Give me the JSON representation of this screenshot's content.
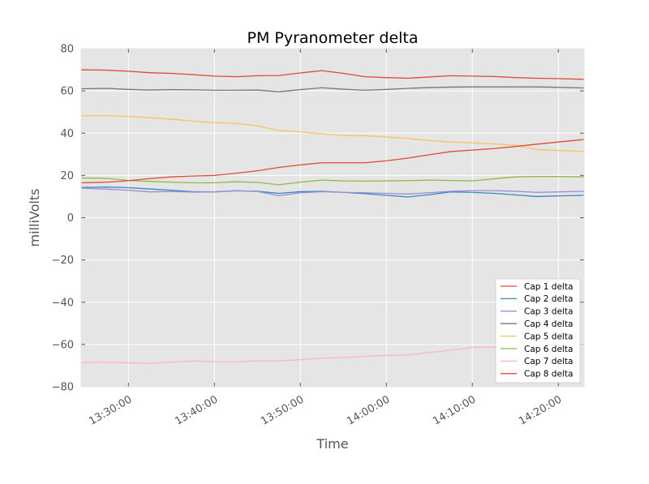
{
  "chart_data": {
    "type": "line",
    "title": "PM Pyranometer delta",
    "xlabel": "Time",
    "ylabel": "milliVolts",
    "ylim": [
      -80,
      80
    ],
    "yticks": [
      -80,
      -60,
      -40,
      -20,
      0,
      20,
      40,
      60,
      80
    ],
    "xlim": [
      "13:24:30",
      "14:23:00"
    ],
    "xticks": [
      "13:30:00",
      "13:40:00",
      "13:50:00",
      "14:00:00",
      "14:10:00",
      "14:20:00"
    ],
    "grid": true,
    "legend_position": "lower right",
    "background": "#e5e5e5",
    "x": [
      "13:24:30",
      "13:27:30",
      "13:30:00",
      "13:32:30",
      "13:35:00",
      "13:37:30",
      "13:40:00",
      "13:42:30",
      "13:45:00",
      "13:47:30",
      "13:50:00",
      "13:52:30",
      "13:55:00",
      "13:57:30",
      "14:00:00",
      "14:02:30",
      "14:05:00",
      "14:07:30",
      "14:10:00",
      "14:12:30",
      "14:15:00",
      "14:17:30",
      "14:20:00",
      "14:23:00"
    ],
    "series": [
      {
        "name": "Cap 1 delta",
        "color": "#e24a33",
        "values": [
          70.0,
          69.8,
          69.3,
          68.6,
          68.3,
          67.7,
          67.0,
          66.7,
          67.2,
          67.3,
          68.5,
          69.6,
          68.3,
          66.7,
          66.3,
          66.0,
          66.6,
          67.2,
          67.0,
          66.8,
          66.3,
          66.0,
          65.8,
          65.5
        ]
      },
      {
        "name": "Cap 2 delta",
        "color": "#348abd",
        "values": [
          14.3,
          14.5,
          14.2,
          13.6,
          13.0,
          12.3,
          12.2,
          12.7,
          12.5,
          11.5,
          12.3,
          12.5,
          12.0,
          11.4,
          10.6,
          9.8,
          10.9,
          12.2,
          12.0,
          11.5,
          10.8,
          10.0,
          10.3,
          10.6
        ]
      },
      {
        "name": "Cap 3 delta",
        "color": "#988ed5",
        "values": [
          14.0,
          13.5,
          13.0,
          12.2,
          12.4,
          12.1,
          12.2,
          12.8,
          12.4,
          10.4,
          11.8,
          12.3,
          12.0,
          11.8,
          11.5,
          11.2,
          11.8,
          12.5,
          12.8,
          12.8,
          12.5,
          12.0,
          12.2,
          12.5
        ]
      },
      {
        "name": "Cap 4 delta",
        "color": "#777777",
        "values": [
          61.0,
          61.2,
          60.7,
          60.4,
          60.6,
          60.5,
          60.3,
          60.3,
          60.4,
          59.6,
          60.6,
          61.5,
          60.8,
          60.3,
          60.7,
          61.2,
          61.6,
          61.8,
          61.9,
          61.9,
          61.9,
          61.9,
          61.7,
          61.4
        ]
      },
      {
        "name": "Cap 5 delta",
        "color": "#fbc15e",
        "values": [
          48.2,
          48.3,
          47.9,
          47.3,
          46.6,
          45.7,
          45.0,
          44.6,
          43.5,
          41.2,
          40.6,
          39.7,
          38.9,
          38.8,
          38.2,
          37.5,
          36.5,
          35.8,
          35.4,
          34.9,
          34.3,
          32.2,
          31.8,
          31.4
        ]
      },
      {
        "name": "Cap 6 delta",
        "color": "#8eba42",
        "values": [
          18.8,
          18.6,
          17.6,
          17.2,
          16.8,
          16.5,
          16.5,
          17.0,
          16.7,
          15.6,
          16.8,
          17.8,
          17.4,
          17.3,
          17.4,
          17.5,
          17.8,
          17.6,
          17.4,
          18.4,
          19.3,
          19.5,
          19.5,
          19.3
        ]
      },
      {
        "name": "Cap 7 delta",
        "color": "#ffb5b8",
        "values": [
          -68.5,
          -68.4,
          -68.7,
          -68.9,
          -68.4,
          -67.8,
          -68.2,
          -68.3,
          -67.8,
          -67.8,
          -67.2,
          -66.5,
          -66.2,
          -65.6,
          -65.2,
          -65.0,
          -63.8,
          -62.7,
          -61.4,
          -61.2,
          -61.0,
          -60.8,
          -60.6,
          -60.0
        ]
      },
      {
        "name": "Cap 8 delta",
        "color": "#e24a33",
        "values": [
          16.5,
          16.8,
          17.5,
          18.5,
          19.3,
          19.7,
          20.0,
          21.0,
          22.2,
          23.8,
          25.0,
          26.0,
          26.0,
          26.0,
          26.9,
          28.2,
          29.8,
          31.3,
          32.0,
          32.7,
          33.7,
          34.8,
          35.8,
          37.0
        ]
      }
    ]
  }
}
